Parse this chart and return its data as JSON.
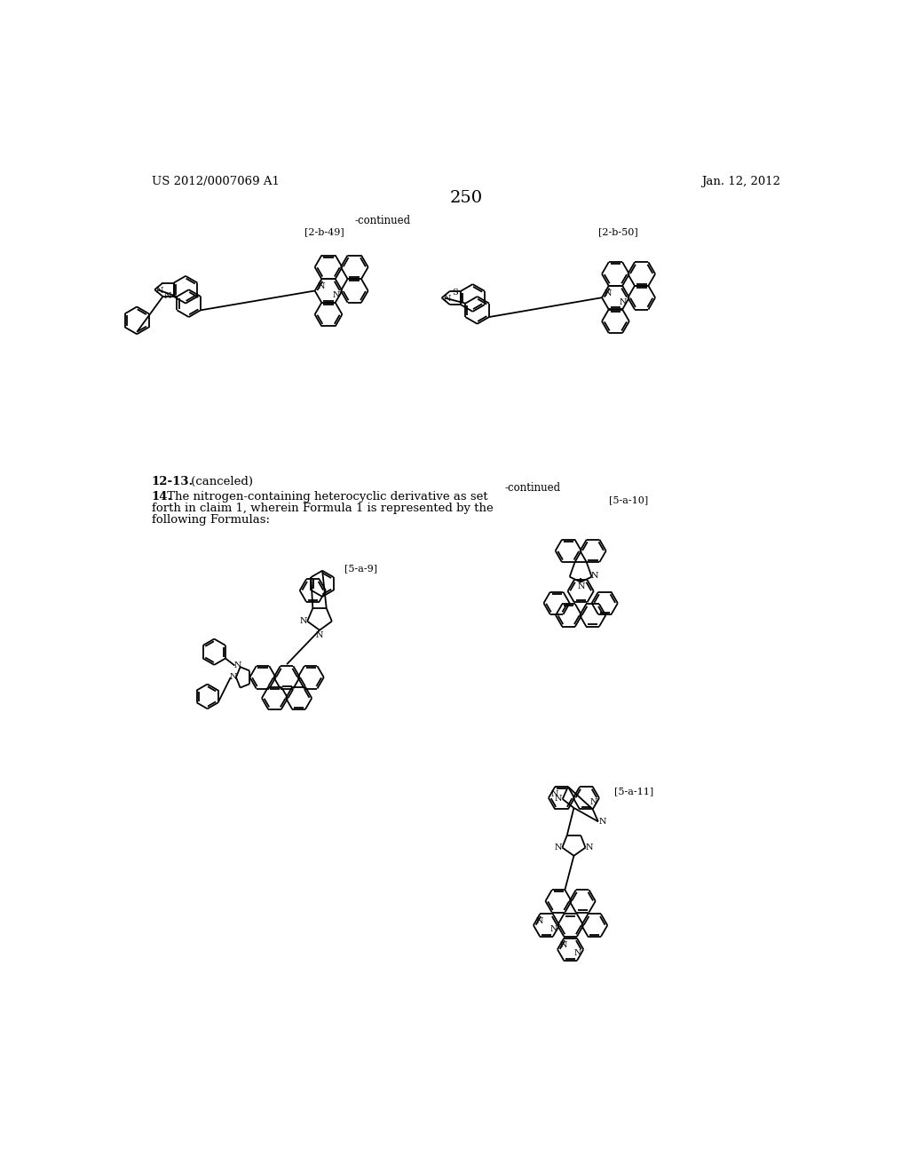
{
  "page_number": "250",
  "header_left": "US 2012/0007069 A1",
  "header_right": "Jan. 12, 2012",
  "background_color": "#ffffff",
  "continued_top": "-continued",
  "label_2b49": "[2-b-49]",
  "label_2b50": "[2-b-50]",
  "continued_mid": "-continued",
  "label_5a10": "[5-a-10]",
  "label_5a9": "[5-a-9]",
  "label_5a11": "[5-a-11]",
  "text_1213": "12-13.",
  "text_1213b": " (canceled)",
  "text_14_bold": "14.",
  "text_14_rest1": " The nitrogen-containing heterocyclic derivative as set",
  "text_14_rest2": "forth in claim 1, wherein Formula 1 is represented by the",
  "text_14_rest3": "following Formulas:"
}
